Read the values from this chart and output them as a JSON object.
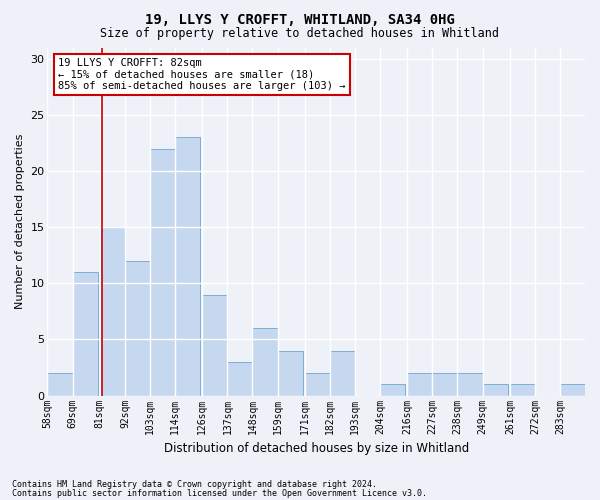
{
  "title1": "19, LLYS Y CROFFT, WHITLAND, SA34 0HG",
  "title2": "Size of property relative to detached houses in Whitland",
  "xlabel": "Distribution of detached houses by size in Whitland",
  "ylabel": "Number of detached properties",
  "bin_labels": [
    "58sqm",
    "69sqm",
    "81sqm",
    "92sqm",
    "103sqm",
    "114sqm",
    "126sqm",
    "137sqm",
    "148sqm",
    "159sqm",
    "171sqm",
    "182sqm",
    "193sqm",
    "204sqm",
    "216sqm",
    "227sqm",
    "238sqm",
    "249sqm",
    "261sqm",
    "272sqm",
    "283sqm"
  ],
  "bin_starts": [
    58,
    69,
    81,
    92,
    103,
    114,
    126,
    137,
    148,
    159,
    171,
    182,
    193,
    204,
    216,
    227,
    238,
    249,
    261,
    272,
    283
  ],
  "bin_width": 11,
  "values": [
    2,
    11,
    15,
    12,
    22,
    23,
    9,
    3,
    6,
    4,
    2,
    4,
    0,
    1,
    2,
    2,
    2,
    1,
    1,
    0,
    1
  ],
  "bar_color": "#c5d8f0",
  "bar_edge_color": "#7aafd4",
  "property_sqm": 82,
  "property_line_color": "#cc0000",
  "annotation_text": "19 LLYS Y CROFFT: 82sqm\n← 15% of detached houses are smaller (18)\n85% of semi-detached houses are larger (103) →",
  "annotation_box_color": "#ffffff",
  "annotation_box_edge": "#cc0000",
  "ylim": [
    0,
    31
  ],
  "yticks": [
    0,
    5,
    10,
    15,
    20,
    25,
    30
  ],
  "footnote1": "Contains HM Land Registry data © Crown copyright and database right 2024.",
  "footnote2": "Contains public sector information licensed under the Open Government Licence v3.0.",
  "bg_color": "#eef2f8",
  "plot_bg_color": "#eef2f8",
  "grid_color": "#ffffff"
}
